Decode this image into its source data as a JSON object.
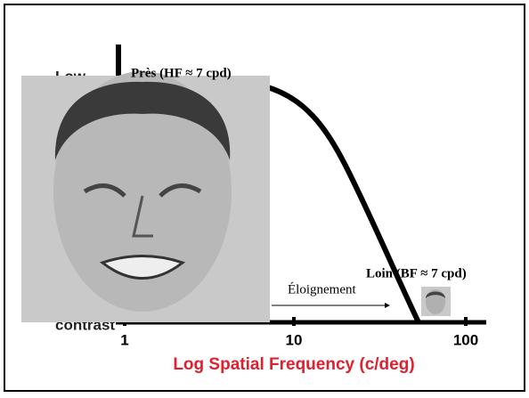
{
  "axis": {
    "y_top_label": "Low",
    "y_bottom_label": "contrast",
    "x_ticks": [
      "1",
      "10",
      "100"
    ],
    "x_label": "Log Spatial Frequency (c/deg)"
  },
  "annotations": {
    "near": "Près (HF ≈ 7 cpd)",
    "far": "Loin (BF ≈ 7 cpd)",
    "arrow": "Éloignement"
  }
}
